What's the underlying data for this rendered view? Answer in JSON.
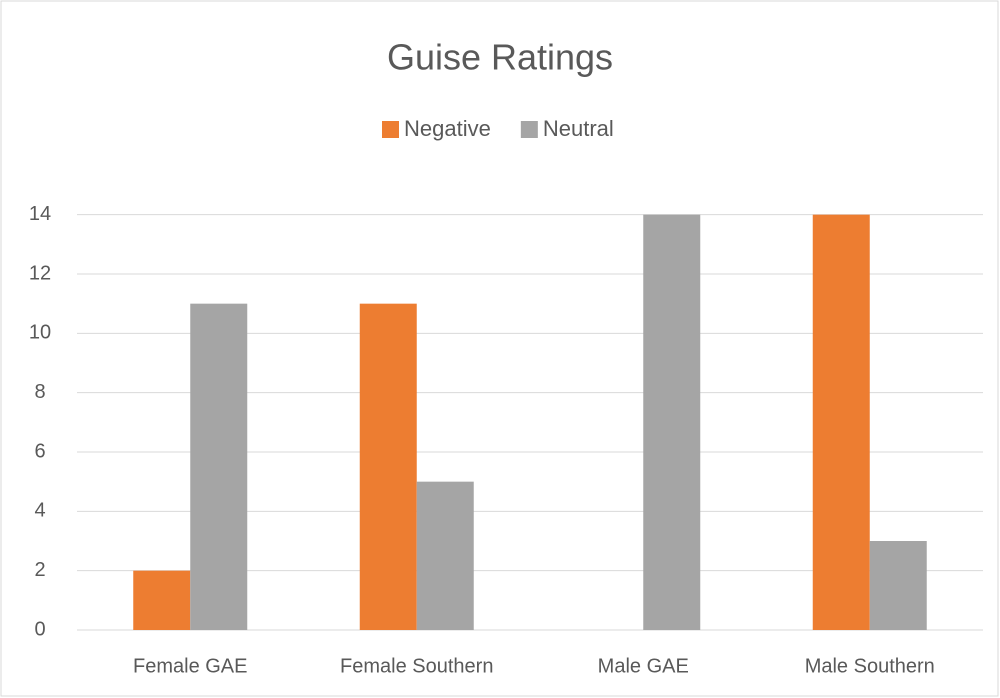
{
  "chart_data": {
    "type": "bar",
    "title": "Guise Ratings",
    "categories": [
      "Female GAE",
      "Female Southern",
      "Male GAE",
      "Male Southern"
    ],
    "series": [
      {
        "name": "Negative",
        "color": "#ed7d31",
        "values": [
          2,
          11,
          0,
          14
        ]
      },
      {
        "name": "Neutral",
        "color": "#a5a5a5",
        "values": [
          11,
          5,
          14,
          3
        ]
      }
    ],
    "ylim": [
      0,
      15
    ],
    "yticks": [
      0,
      2,
      4,
      6,
      8,
      10,
      12,
      14
    ],
    "grid": true,
    "legend": "top"
  }
}
